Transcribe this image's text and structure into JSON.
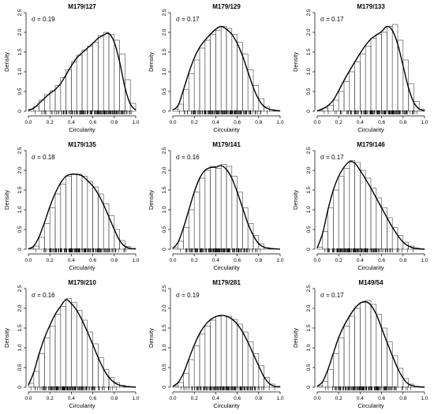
{
  "chart_data": [
    {
      "type": "bar",
      "title": "M179/127",
      "annotation": "σ = 0.19",
      "xlabel": "Circularity",
      "ylabel": "Density",
      "xlim": [
        0,
        1
      ],
      "ylim": [
        0,
        2.5
      ],
      "xticks": [
        "0.0",
        "0.2",
        "0.4",
        "0.6",
        "0.8",
        "1.0"
      ],
      "yticks": [
        "0",
        "0.5",
        "1.0",
        "1.5",
        "2.0",
        "2.5"
      ],
      "bin_width": 0.05,
      "bin_start": 0.0,
      "histogram": [
        0.05,
        0.12,
        0.28,
        0.42,
        0.52,
        0.65,
        0.85,
        1.05,
        1.25,
        1.42,
        1.55,
        1.65,
        1.75,
        1.92,
        2.0,
        1.95,
        1.8,
        1.45,
        0.8,
        0.2
      ],
      "density_curve": [
        [
          0.0,
          0.02
        ],
        [
          0.05,
          0.08
        ],
        [
          0.1,
          0.2
        ],
        [
          0.15,
          0.33
        ],
        [
          0.2,
          0.45
        ],
        [
          0.25,
          0.55
        ],
        [
          0.3,
          0.7
        ],
        [
          0.35,
          0.92
        ],
        [
          0.4,
          1.15
        ],
        [
          0.45,
          1.35
        ],
        [
          0.5,
          1.48
        ],
        [
          0.55,
          1.6
        ],
        [
          0.6,
          1.72
        ],
        [
          0.65,
          1.85
        ],
        [
          0.7,
          1.93
        ],
        [
          0.75,
          1.97
        ],
        [
          0.8,
          1.75
        ],
        [
          0.85,
          1.25
        ],
        [
          0.9,
          0.6
        ],
        [
          0.95,
          0.18
        ],
        [
          1.0,
          0.03
        ]
      ]
    },
    {
      "type": "bar",
      "title": "M179/129",
      "annotation": "σ = 0.17",
      "xlabel": "Circularity",
      "ylabel": "Density",
      "xlim": [
        0,
        1
      ],
      "ylim": [
        0,
        2.5
      ],
      "xticks": [
        "0.0",
        "0.2",
        "0.4",
        "0.6",
        "0.8",
        "1.0"
      ],
      "yticks": [
        "0",
        "0.5",
        "1.0",
        "1.5",
        "2.0",
        "2.5"
      ],
      "bin_width": 0.05,
      "bin_start": 0.0,
      "histogram": [
        0.05,
        0.18,
        0.55,
        0.95,
        1.3,
        1.6,
        1.8,
        1.95,
        2.05,
        2.15,
        2.1,
        1.95,
        1.75,
        1.45,
        1.05,
        0.65,
        0.32,
        0.12,
        0.04,
        0.01
      ],
      "density_curve": [
        [
          0.0,
          0.03
        ],
        [
          0.05,
          0.15
        ],
        [
          0.1,
          0.55
        ],
        [
          0.15,
          0.98
        ],
        [
          0.2,
          1.35
        ],
        [
          0.25,
          1.62
        ],
        [
          0.3,
          1.8
        ],
        [
          0.35,
          1.95
        ],
        [
          0.4,
          2.08
        ],
        [
          0.45,
          2.15
        ],
        [
          0.5,
          2.08
        ],
        [
          0.55,
          1.95
        ],
        [
          0.6,
          1.72
        ],
        [
          0.65,
          1.4
        ],
        [
          0.7,
          1.0
        ],
        [
          0.75,
          0.6
        ],
        [
          0.8,
          0.3
        ],
        [
          0.85,
          0.12
        ],
        [
          0.9,
          0.05
        ],
        [
          0.95,
          0.02
        ],
        [
          1.0,
          0.01
        ]
      ]
    },
    {
      "type": "bar",
      "title": "M179/133",
      "annotation": "σ = 0.17",
      "xlabel": "Circularity",
      "ylabel": "Density",
      "xlim": [
        0,
        1
      ],
      "ylim": [
        0,
        2.5
      ],
      "xticks": [
        "0.0",
        "0.2",
        "0.4",
        "0.6",
        "0.8",
        "1.0"
      ],
      "yticks": [
        "0",
        "0.5",
        "1.0",
        "1.5",
        "2.0",
        "2.5"
      ],
      "bin_width": 0.05,
      "bin_start": 0.0,
      "histogram": [
        0.02,
        0.08,
        0.15,
        0.28,
        0.5,
        0.75,
        1.0,
        1.25,
        1.45,
        1.65,
        1.85,
        1.95,
        2.0,
        2.15,
        2.2,
        1.8,
        1.3,
        0.7,
        0.25,
        0.05
      ],
      "density_curve": [
        [
          0.0,
          0.01
        ],
        [
          0.05,
          0.06
        ],
        [
          0.1,
          0.14
        ],
        [
          0.15,
          0.28
        ],
        [
          0.2,
          0.52
        ],
        [
          0.25,
          0.78
        ],
        [
          0.3,
          1.02
        ],
        [
          0.35,
          1.25
        ],
        [
          0.4,
          1.47
        ],
        [
          0.45,
          1.67
        ],
        [
          0.5,
          1.83
        ],
        [
          0.55,
          1.93
        ],
        [
          0.6,
          2.02
        ],
        [
          0.65,
          2.15
        ],
        [
          0.7,
          2.05
        ],
        [
          0.75,
          1.7
        ],
        [
          0.8,
          1.15
        ],
        [
          0.85,
          0.6
        ],
        [
          0.9,
          0.22
        ],
        [
          0.95,
          0.06
        ],
        [
          1.0,
          0.01
        ]
      ]
    },
    {
      "type": "bar",
      "title": "M179/135",
      "annotation": "σ = 0.18",
      "xlabel": "Circularity",
      "ylabel": "Density",
      "xlim": [
        0,
        1
      ],
      "ylim": [
        0,
        2.5
      ],
      "xticks": [
        "0.0",
        "0.2",
        "0.4",
        "0.6",
        "0.8",
        "1.0"
      ],
      "yticks": [
        "0",
        "0.5",
        "1.0",
        "1.5",
        "2.0",
        "2.5"
      ],
      "bin_width": 0.05,
      "bin_start": 0.0,
      "histogram": [
        0.02,
        0.08,
        0.3,
        0.65,
        1.05,
        1.4,
        1.65,
        1.85,
        1.9,
        1.9,
        1.85,
        1.72,
        1.58,
        1.4,
        1.15,
        0.85,
        0.5,
        0.22,
        0.07,
        0.02
      ],
      "density_curve": [
        [
          0.0,
          0.01
        ],
        [
          0.05,
          0.08
        ],
        [
          0.1,
          0.32
        ],
        [
          0.15,
          0.68
        ],
        [
          0.2,
          1.08
        ],
        [
          0.25,
          1.42
        ],
        [
          0.3,
          1.68
        ],
        [
          0.35,
          1.85
        ],
        [
          0.4,
          1.9
        ],
        [
          0.45,
          1.9
        ],
        [
          0.5,
          1.86
        ],
        [
          0.55,
          1.74
        ],
        [
          0.6,
          1.6
        ],
        [
          0.65,
          1.4
        ],
        [
          0.7,
          1.13
        ],
        [
          0.75,
          0.82
        ],
        [
          0.8,
          0.5
        ],
        [
          0.85,
          0.22
        ],
        [
          0.9,
          0.07
        ],
        [
          0.95,
          0.02
        ],
        [
          1.0,
          0.01
        ]
      ]
    },
    {
      "type": "bar",
      "title": "M179/141",
      "annotation": "σ = 0.16",
      "xlabel": "Circularity",
      "ylabel": "Density",
      "xlim": [
        0,
        1
      ],
      "ylim": [
        0,
        2.5
      ],
      "xticks": [
        "0.0",
        "0.2",
        "0.4",
        "0.6",
        "0.8",
        "1.0"
      ],
      "yticks": [
        "0",
        "0.5",
        "1.0",
        "1.5",
        "2.0",
        "2.5"
      ],
      "bin_width": 0.05,
      "bin_start": 0.0,
      "histogram": [
        0.04,
        0.2,
        0.55,
        1.0,
        1.45,
        1.8,
        2.0,
        2.1,
        2.05,
        2.15,
        2.1,
        1.85,
        1.45,
        1.05,
        0.65,
        0.35,
        0.14,
        0.04,
        0.01,
        0.0
      ],
      "density_curve": [
        [
          0.0,
          0.02
        ],
        [
          0.05,
          0.18
        ],
        [
          0.1,
          0.55
        ],
        [
          0.15,
          1.0
        ],
        [
          0.2,
          1.45
        ],
        [
          0.25,
          1.8
        ],
        [
          0.3,
          2.0
        ],
        [
          0.35,
          2.07
        ],
        [
          0.4,
          2.08
        ],
        [
          0.45,
          2.12
        ],
        [
          0.5,
          2.02
        ],
        [
          0.55,
          1.8
        ],
        [
          0.6,
          1.45
        ],
        [
          0.65,
          1.05
        ],
        [
          0.7,
          0.65
        ],
        [
          0.75,
          0.35
        ],
        [
          0.8,
          0.14
        ],
        [
          0.85,
          0.05
        ],
        [
          0.9,
          0.02
        ],
        [
          0.95,
          0.01
        ],
        [
          1.0,
          0.0
        ]
      ]
    },
    {
      "type": "bar",
      "title": "M179/146",
      "annotation": "σ = 0.17",
      "xlabel": "Circularity",
      "ylabel": "Density",
      "xlim": [
        0,
        1
      ],
      "ylim": [
        0,
        2.5
      ],
      "xticks": [
        "0.0",
        "0.2",
        "0.4",
        "0.6",
        "0.8",
        "1.0"
      ],
      "yticks": [
        "0",
        "0.5",
        "1.0",
        "1.5",
        "2.0",
        "2.5"
      ],
      "bin_width": 0.05,
      "bin_start": 0.0,
      "histogram": [
        0.05,
        0.45,
        1.05,
        1.5,
        1.85,
        2.05,
        2.25,
        2.2,
        2.0,
        1.8,
        1.55,
        1.3,
        1.05,
        0.8,
        0.55,
        0.35,
        0.18,
        0.08,
        0.03,
        0.01
      ],
      "density_curve": [
        [
          0.0,
          0.03
        ],
        [
          0.05,
          0.4
        ],
        [
          0.1,
          1.0
        ],
        [
          0.15,
          1.5
        ],
        [
          0.2,
          1.85
        ],
        [
          0.25,
          2.08
        ],
        [
          0.3,
          2.22
        ],
        [
          0.35,
          2.18
        ],
        [
          0.4,
          2.0
        ],
        [
          0.45,
          1.78
        ],
        [
          0.5,
          1.55
        ],
        [
          0.55,
          1.3
        ],
        [
          0.6,
          1.05
        ],
        [
          0.65,
          0.8
        ],
        [
          0.7,
          0.56
        ],
        [
          0.75,
          0.35
        ],
        [
          0.8,
          0.18
        ],
        [
          0.85,
          0.08
        ],
        [
          0.9,
          0.03
        ],
        [
          0.95,
          0.01
        ],
        [
          1.0,
          0.0
        ]
      ]
    },
    {
      "type": "bar",
      "title": "M179/210",
      "annotation": "σ = 0.16",
      "xlabel": "Circularity",
      "ylabel": "Density",
      "xlim": [
        0,
        1
      ],
      "ylim": [
        0,
        2.5
      ],
      "xticks": [
        "0.0",
        "0.2",
        "0.4",
        "0.6",
        "0.8",
        "1.0"
      ],
      "yticks": [
        "0",
        "0.5",
        "1.0",
        "1.5",
        "2.0",
        "2.5"
      ],
      "bin_width": 0.05,
      "bin_start": 0.0,
      "histogram": [
        0.1,
        0.4,
        0.85,
        1.25,
        1.55,
        1.85,
        2.05,
        2.25,
        2.15,
        1.95,
        1.7,
        1.4,
        1.1,
        0.75,
        0.45,
        0.25,
        0.12,
        0.05,
        0.02,
        0.01
      ],
      "density_curve": [
        [
          0.0,
          0.05
        ],
        [
          0.05,
          0.38
        ],
        [
          0.1,
          0.85
        ],
        [
          0.15,
          1.25
        ],
        [
          0.2,
          1.57
        ],
        [
          0.25,
          1.85
        ],
        [
          0.3,
          2.05
        ],
        [
          0.35,
          2.22
        ],
        [
          0.4,
          2.12
        ],
        [
          0.45,
          1.95
        ],
        [
          0.5,
          1.7
        ],
        [
          0.55,
          1.4
        ],
        [
          0.6,
          1.08
        ],
        [
          0.65,
          0.75
        ],
        [
          0.7,
          0.46
        ],
        [
          0.75,
          0.25
        ],
        [
          0.8,
          0.12
        ],
        [
          0.85,
          0.05
        ],
        [
          0.9,
          0.02
        ],
        [
          0.95,
          0.01
        ],
        [
          1.0,
          0.0
        ]
      ]
    },
    {
      "type": "bar",
      "title": "M179/281",
      "annotation": "σ = 0.19",
      "xlabel": "Circularity",
      "ylabel": "Density",
      "xlim": [
        0,
        1
      ],
      "ylim": [
        0,
        2.5
      ],
      "xticks": [
        "0.0",
        "0.2",
        "0.4",
        "0.6",
        "0.8",
        "1.0"
      ],
      "yticks": [
        "0",
        "0.5",
        "1.0",
        "1.5",
        "2.0",
        "2.5"
      ],
      "bin_width": 0.05,
      "bin_start": 0.0,
      "histogram": [
        0.03,
        0.12,
        0.35,
        0.7,
        1.05,
        1.35,
        1.55,
        1.7,
        1.8,
        1.82,
        1.8,
        1.72,
        1.6,
        1.4,
        1.15,
        0.85,
        0.55,
        0.25,
        0.08,
        0.02
      ],
      "density_curve": [
        [
          0.0,
          0.02
        ],
        [
          0.05,
          0.12
        ],
        [
          0.1,
          0.36
        ],
        [
          0.15,
          0.72
        ],
        [
          0.2,
          1.07
        ],
        [
          0.25,
          1.36
        ],
        [
          0.3,
          1.57
        ],
        [
          0.35,
          1.71
        ],
        [
          0.4,
          1.79
        ],
        [
          0.45,
          1.82
        ],
        [
          0.5,
          1.8
        ],
        [
          0.55,
          1.73
        ],
        [
          0.6,
          1.6
        ],
        [
          0.65,
          1.4
        ],
        [
          0.7,
          1.14
        ],
        [
          0.75,
          0.84
        ],
        [
          0.8,
          0.54
        ],
        [
          0.85,
          0.26
        ],
        [
          0.9,
          0.09
        ],
        [
          0.95,
          0.02
        ],
        [
          1.0,
          0.01
        ]
      ]
    },
    {
      "type": "bar",
      "title": "M149/54",
      "annotation": "σ = 0.17",
      "xlabel": "Circularity",
      "ylabel": "Density",
      "xlim": [
        0,
        1
      ],
      "ylim": [
        0,
        2.5
      ],
      "xticks": [
        "0.0",
        "0.2",
        "0.4",
        "0.6",
        "0.8",
        "1.0"
      ],
      "yticks": [
        "0",
        "0.5",
        "1.0",
        "1.5",
        "2.0",
        "2.5"
      ],
      "bin_width": 0.05,
      "bin_start": 0.0,
      "histogram": [
        0.03,
        0.15,
        0.45,
        0.85,
        1.25,
        1.55,
        1.8,
        2.0,
        2.15,
        2.2,
        2.1,
        1.85,
        1.5,
        1.15,
        0.8,
        0.48,
        0.22,
        0.08,
        0.02,
        0.01
      ],
      "density_curve": [
        [
          0.0,
          0.02
        ],
        [
          0.05,
          0.14
        ],
        [
          0.1,
          0.45
        ],
        [
          0.15,
          0.86
        ],
        [
          0.2,
          1.26
        ],
        [
          0.25,
          1.56
        ],
        [
          0.3,
          1.8
        ],
        [
          0.35,
          2.0
        ],
        [
          0.4,
          2.13
        ],
        [
          0.45,
          2.17
        ],
        [
          0.5,
          2.08
        ],
        [
          0.55,
          1.85
        ],
        [
          0.6,
          1.5
        ],
        [
          0.65,
          1.14
        ],
        [
          0.7,
          0.8
        ],
        [
          0.75,
          0.48
        ],
        [
          0.8,
          0.23
        ],
        [
          0.85,
          0.08
        ],
        [
          0.9,
          0.03
        ],
        [
          0.95,
          0.01
        ],
        [
          1.0,
          0.0
        ]
      ]
    }
  ]
}
